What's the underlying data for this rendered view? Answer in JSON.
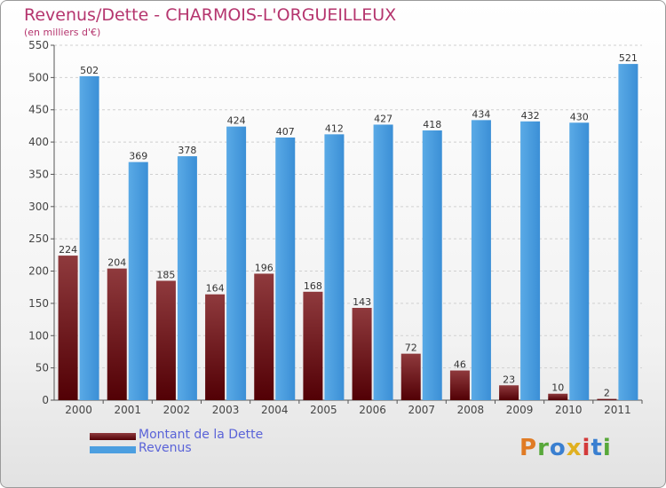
{
  "title": "Revenus/Dette - CHARMOIS-L'ORGUEILLEUX",
  "subtitle": "(en milliers d'€)",
  "logo": {
    "text": "Proxiti",
    "colors": [
      "#e07b24",
      "#58a83a",
      "#3a7fd0",
      "#e0b020",
      "#d33a3a",
      "#3a7fd0",
      "#58a83a"
    ]
  },
  "colors": {
    "dette_top": "#8f3a3d",
    "dette_bottom": "#520005",
    "revenus": "#4c9fe0",
    "title": "#b5356e",
    "legend_text": "#5a63d8"
  },
  "chart_data": {
    "type": "bar",
    "title": "Revenus/Dette - CHARMOIS-L'ORGUEILLEUX",
    "ylabel": "(en milliers d'€)",
    "ylim": [
      0,
      550
    ],
    "yticks": [
      0,
      50,
      100,
      150,
      200,
      250,
      300,
      350,
      400,
      450,
      500,
      550
    ],
    "grid": true,
    "legend_position": "bottom-left",
    "categories": [
      "2000",
      "2001",
      "2002",
      "2003",
      "2004",
      "2005",
      "2006",
      "2007",
      "2008",
      "2009",
      "2010",
      "2011"
    ],
    "series": [
      {
        "name": "Montant de la Dette",
        "values": [
          224,
          204,
          185,
          164,
          196,
          168,
          143,
          72,
          46,
          23,
          10,
          2
        ]
      },
      {
        "name": "Revenus",
        "values": [
          502,
          369,
          378,
          424,
          407,
          412,
          427,
          418,
          434,
          432,
          430,
          521
        ]
      }
    ]
  }
}
